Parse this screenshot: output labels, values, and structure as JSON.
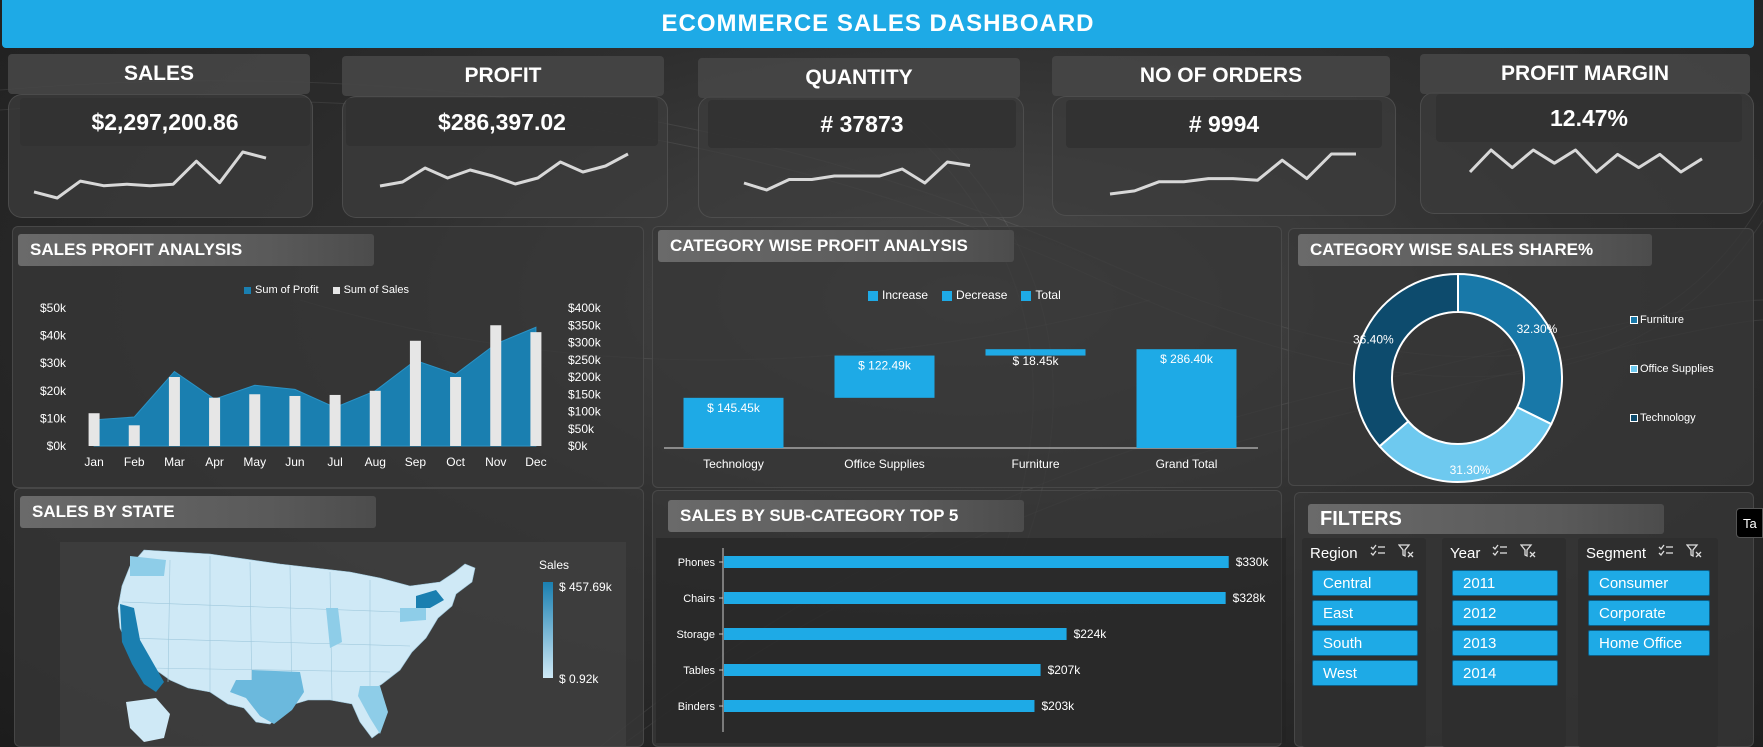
{
  "header": {
    "title": "ECOMMERCE  SALES  DASHBOARD"
  },
  "kpis": [
    {
      "label": "SALES",
      "value": "$2,297,200.86",
      "spark": [
        8,
        4,
        15,
        12,
        13,
        12,
        13,
        28,
        14,
        34,
        30
      ]
    },
    {
      "label": "PROFIT",
      "value": "$286,397.02",
      "spark": [
        8,
        10,
        17,
        12,
        16,
        13,
        9,
        12,
        20,
        15,
        18,
        24
      ]
    },
    {
      "label": "QUANTITY",
      "value": "# 37873",
      "spark": [
        14,
        12,
        15,
        15,
        16,
        16,
        16,
        18,
        14,
        20,
        19
      ]
    },
    {
      "label": "NO OF ORDERS",
      "value": "# 9994",
      "spark": [
        4,
        6,
        12,
        12,
        14,
        14,
        13,
        26,
        14,
        30,
        30
      ]
    },
    {
      "label": "PROFIT MARGIN",
      "value": "12.47%",
      "spark": [
        12,
        22,
        14,
        22,
        16,
        22,
        12,
        20,
        14,
        20,
        12,
        18
      ]
    }
  ],
  "sales_profit": {
    "title": "SALES PROFIT ANALYSIS",
    "legend": [
      "Sum of Profit",
      "Sum of Sales"
    ],
    "colors": {
      "profit": "#1a7fb0",
      "sales": "#e6e6e6"
    }
  },
  "category_profit": {
    "title": "CATEGORY  WISE PROFIT  ANALYSIS",
    "legend": [
      "Increase",
      "Decrease",
      "Total"
    ],
    "color": "#1eaae6"
  },
  "sales_share": {
    "title": "CATEGORY WISE SALES SHARE%",
    "legend": [
      "Furniture",
      "Office Supplies",
      "Technology"
    ]
  },
  "sales_by_state": {
    "title": "SALES BY STATE",
    "legend_title": "Sales",
    "max_label": "$ 457.69k",
    "min_label": "$ 0.92k"
  },
  "subcategory": {
    "title": "SALES BY SUB-CATEGORY TOP 5",
    "color": "#1eaae6"
  },
  "filters": {
    "title": "FILTERS",
    "groups": [
      {
        "label": "Region",
        "options": [
          "Central",
          "East",
          "South",
          "West"
        ]
      },
      {
        "label": "Year",
        "options": [
          "2011",
          "2012",
          "2013",
          "2014"
        ]
      },
      {
        "label": "Segment",
        "options": [
          "Consumer",
          "Corporate",
          "Home Office"
        ]
      }
    ]
  },
  "edge_tab": {
    "label": "Ta"
  },
  "chart_data": [
    {
      "type": "bar",
      "title": "SALES PROFIT ANALYSIS",
      "categories": [
        "Jan",
        "Feb",
        "Mar",
        "Apr",
        "May",
        "Jun",
        "Jul",
        "Aug",
        "Sep",
        "Oct",
        "Nov",
        "Dec"
      ],
      "series": [
        {
          "name": "Sum of Profit",
          "type": "area",
          "axis": "left",
          "values": [
            9500,
            10500,
            27000,
            17000,
            22000,
            20500,
            14000,
            20000,
            31000,
            26000,
            37000,
            43000
          ]
        },
        {
          "name": "Sum of Sales",
          "type": "bar",
          "axis": "right",
          "values": [
            95000,
            60000,
            200000,
            140000,
            150000,
            145000,
            148000,
            160000,
            305000,
            200000,
            350000,
            330000
          ]
        }
      ],
      "y_left": {
        "ticks": [
          "$0k",
          "$10k",
          "$20k",
          "$30k",
          "$40k",
          "$50k"
        ],
        "ylim": [
          0,
          50000
        ]
      },
      "y_right": {
        "ticks": [
          "$0k",
          "$50k",
          "$100k",
          "$150k",
          "$200k",
          "$250k",
          "$300k",
          "$350k",
          "$400k"
        ],
        "ylim": [
          0,
          400000
        ]
      },
      "legend": "top"
    },
    {
      "type": "bar",
      "title": "CATEGORY  WISE PROFIT  ANALYSIS",
      "subtype": "waterfall",
      "categories": [
        "Technology",
        "Office Supplies",
        "Furniture",
        "Grand Total"
      ],
      "values": [
        145.45,
        122.49,
        18.45,
        286.4
      ],
      "labels": [
        "$ 145.45k",
        "$ 122.49k",
        "$ 18.45k",
        "$ 286.40k"
      ],
      "ylim": [
        0,
        400
      ],
      "legend": "top"
    },
    {
      "type": "pie",
      "title": "CATEGORY WISE SALES SHARE%",
      "donut": true,
      "slices": [
        {
          "name": "Furniture",
          "value": 32.3,
          "label": "32.30%",
          "color": "#1878a8"
        },
        {
          "name": "Office Supplies",
          "value": 31.3,
          "label": "31.30%",
          "color": "#6ec9ef"
        },
        {
          "name": "Technology",
          "value": 36.4,
          "label": "36.40%",
          "color": "#0d4b6d"
        }
      ],
      "legend": "right"
    },
    {
      "type": "bar",
      "title": "SALES BY SUB-CATEGORY TOP 5",
      "orientation": "horizontal",
      "categories": [
        "Phones",
        "Chairs",
        "Storage",
        "Tables",
        "Binders"
      ],
      "values": [
        330,
        328,
        224,
        207,
        203
      ],
      "labels": [
        "$330k",
        "$328k",
        "$224k",
        "$207k",
        "$203k"
      ],
      "xlim": [
        0,
        340
      ]
    }
  ]
}
